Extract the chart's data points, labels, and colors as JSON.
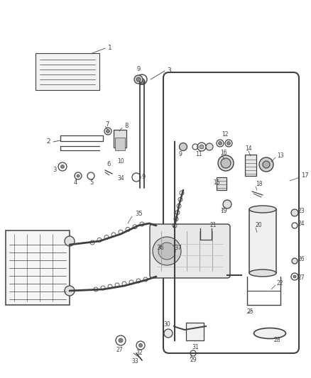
{
  "bg_color": "#ffffff",
  "lc": "#404040",
  "figsize": [
    4.38,
    5.33
  ],
  "dpi": 100
}
